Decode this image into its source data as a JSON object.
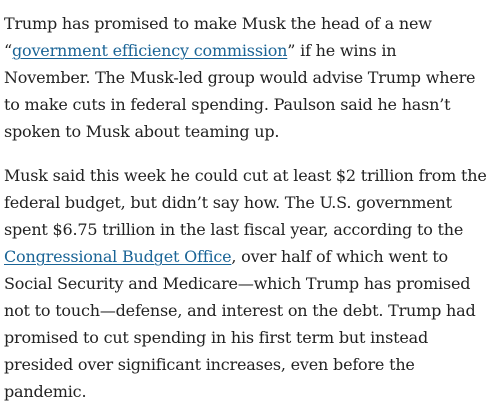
{
  "article": {
    "paragraph_1": {
      "line_1": "Trump has promised to make Musk the head of a new",
      "line_2_prefix": "“",
      "line_2_link": "government efficiency commission",
      "line_2_suffix": "” if he wins in",
      "line_3": "November. The Musk-led group would advise Trump where",
      "line_4": "to make cuts in federal spending. Paulson said he hasn’t",
      "line_5": "spoken to Musk about teaming up."
    },
    "paragraph_2": {
      "line_1": "Musk said this week he could cut at least $2 trillion from the",
      "line_2": "federal budget, but didn’t say how. The U.S. government",
      "line_3": "spent $6.75 trillion in the last fiscal year, according to the",
      "line_4_link": "Congressional Budget Office",
      "line_4_suffix": ", over half of which went to",
      "line_5": "Social Security and Medicare—which Trump has promised",
      "line_6": "not to touch—defense, and interest on the debt. Trump had",
      "line_7": "promised to cut spending in his first term but instead",
      "line_8": "presided over significant increases, even before the",
      "line_9": "pandemic."
    }
  },
  "colors": {
    "text": "#222222",
    "link": "#1a6496",
    "background": "#ffffff"
  }
}
